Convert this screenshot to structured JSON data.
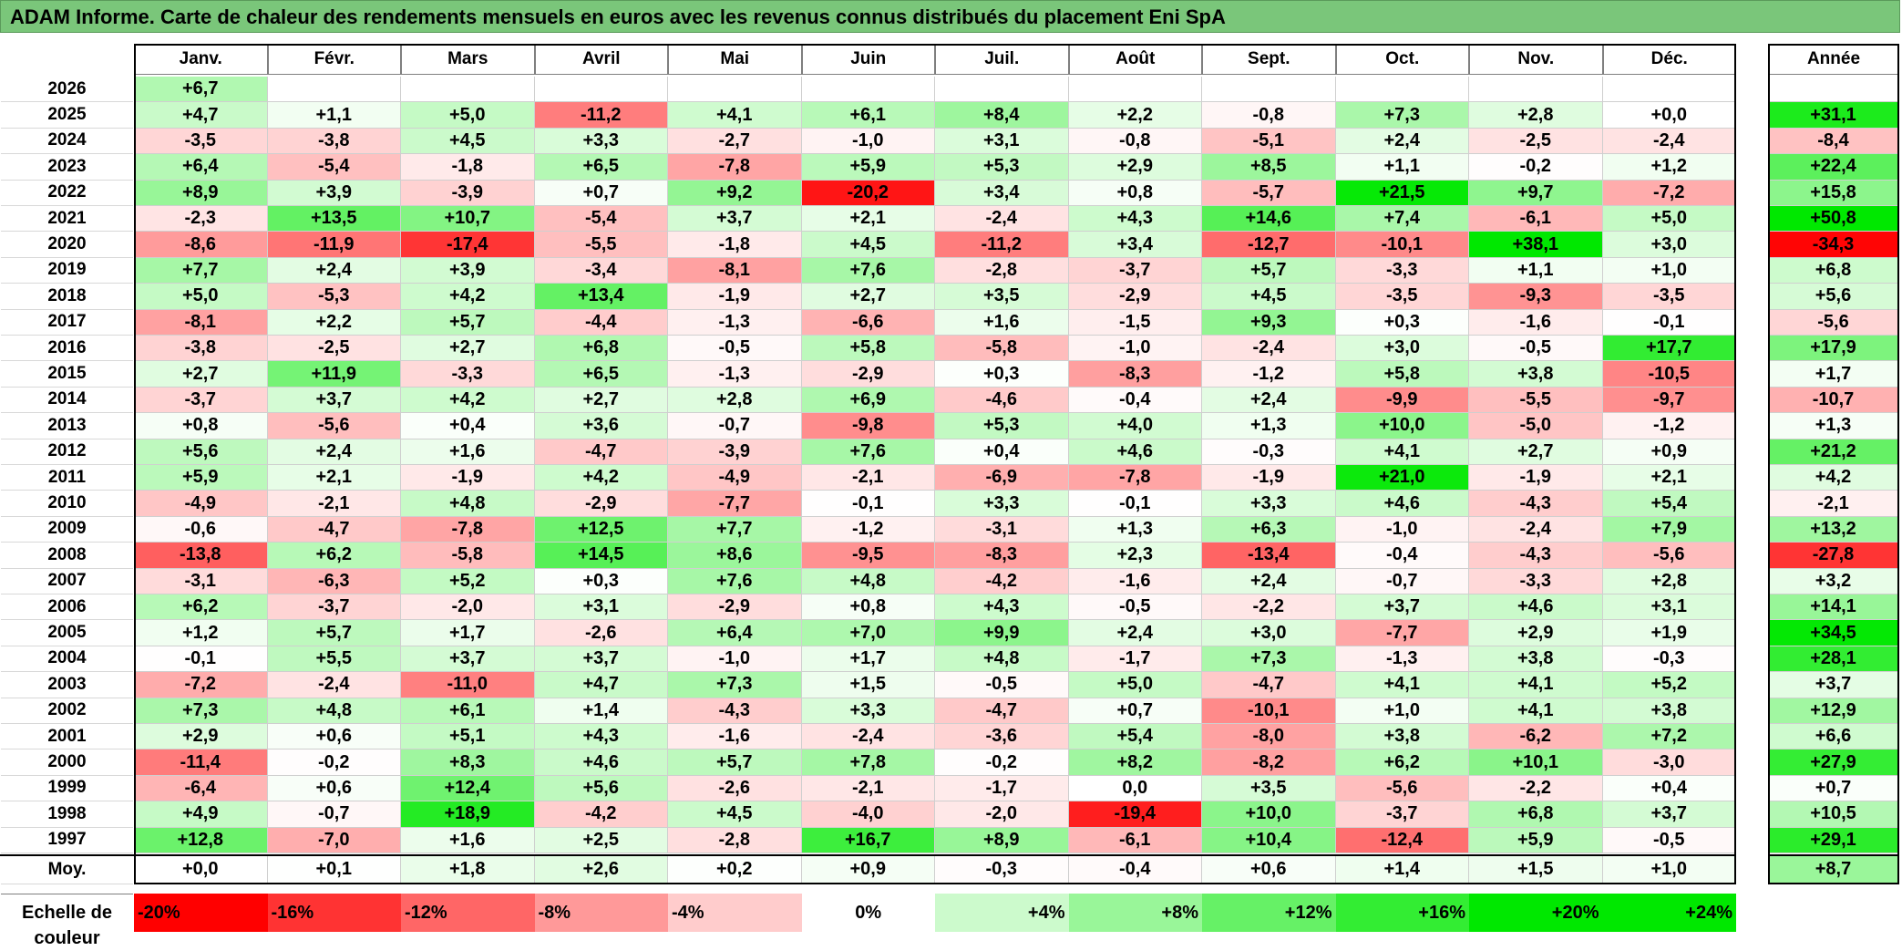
{
  "title": "ADAM Informe. Carte de chaleur des rendements mensuels en euros avec les revenus connus distribués du placement Eni SpA",
  "colors": {
    "title_bg": "#7ac67a",
    "positive": "#00e600",
    "negative": "#ff0000"
  },
  "chart_data": {
    "type": "heatmap",
    "columns": [
      "Janv.",
      "Févr.",
      "Mars",
      "Avril",
      "Mai",
      "Juin",
      "Juil.",
      "Août",
      "Sept.",
      "Oct.",
      "Nov.",
      "Déc."
    ],
    "year_column": "Année",
    "rows": [
      {
        "year": "2026",
        "values": [
          "+6,7",
          null,
          null,
          null,
          null,
          null,
          null,
          null,
          null,
          null,
          null,
          null
        ],
        "annual": null
      },
      {
        "year": "2025",
        "values": [
          "+4,7",
          "+1,1",
          "+5,0",
          "-11,2",
          "+4,1",
          "+6,1",
          "+8,4",
          "+2,2",
          "-0,8",
          "+7,3",
          "+2,8",
          "+0,0"
        ],
        "annual": "+31,1"
      },
      {
        "year": "2024",
        "values": [
          "-3,5",
          "-3,8",
          "+4,5",
          "+3,3",
          "-2,7",
          "-1,0",
          "+3,1",
          "-0,8",
          "-5,1",
          "+2,4",
          "-2,5",
          "-2,4"
        ],
        "annual": "-8,4"
      },
      {
        "year": "2023",
        "values": [
          "+6,4",
          "-5,4",
          "-1,8",
          "+6,5",
          "-7,8",
          "+5,9",
          "+5,3",
          "+2,9",
          "+8,5",
          "+1,1",
          "-0,2",
          "+1,2"
        ],
        "annual": "+22,4"
      },
      {
        "year": "2022",
        "values": [
          "+8,9",
          "+3,9",
          "-3,9",
          "+0,7",
          "+9,2",
          "-20,2",
          "+3,4",
          "+0,8",
          "-5,7",
          "+21,5",
          "+9,7",
          "-7,2"
        ],
        "annual": "+15,8"
      },
      {
        "year": "2021",
        "values": [
          "-2,3",
          "+13,5",
          "+10,7",
          "-5,4",
          "+3,7",
          "+2,1",
          "-2,4",
          "+4,3",
          "+14,6",
          "+7,4",
          "-6,1",
          "+5,0"
        ],
        "annual": "+50,8"
      },
      {
        "year": "2020",
        "values": [
          "-8,6",
          "-11,9",
          "-17,4",
          "-5,5",
          "-1,8",
          "+4,5",
          "-11,2",
          "+3,4",
          "-12,7",
          "-10,1",
          "+38,1",
          "+3,0"
        ],
        "annual": "-34,3"
      },
      {
        "year": "2019",
        "values": [
          "+7,7",
          "+2,4",
          "+3,9",
          "-3,4",
          "-8,1",
          "+7,6",
          "-2,8",
          "-3,7",
          "+5,7",
          "-3,3",
          "+1,1",
          "+1,0"
        ],
        "annual": "+6,8"
      },
      {
        "year": "2018",
        "values": [
          "+5,0",
          "-5,3",
          "+4,2",
          "+13,4",
          "-1,9",
          "+2,7",
          "+3,5",
          "-2,9",
          "+4,5",
          "-3,5",
          "-9,3",
          "-3,5"
        ],
        "annual": "+5,6"
      },
      {
        "year": "2017",
        "values": [
          "-8,1",
          "+2,2",
          "+5,7",
          "-4,4",
          "-1,3",
          "-6,6",
          "+1,6",
          "-1,5",
          "+9,3",
          "+0,3",
          "-1,6",
          "-0,1"
        ],
        "annual": "-5,6"
      },
      {
        "year": "2016",
        "values": [
          "-3,8",
          "-2,5",
          "+2,7",
          "+6,8",
          "-0,5",
          "+5,8",
          "-5,8",
          "-1,0",
          "-2,4",
          "+3,0",
          "-0,5",
          "+17,7"
        ],
        "annual": "+17,9"
      },
      {
        "year": "2015",
        "values": [
          "+2,7",
          "+11,9",
          "-3,3",
          "+6,5",
          "-1,3",
          "-2,9",
          "+0,3",
          "-8,3",
          "-1,2",
          "+5,8",
          "+3,8",
          "-10,5"
        ],
        "annual": "+1,7"
      },
      {
        "year": "2014",
        "values": [
          "-3,7",
          "+3,7",
          "+4,2",
          "+2,7",
          "+2,8",
          "+6,9",
          "-4,6",
          "-0,4",
          "+2,4",
          "-9,9",
          "-5,5",
          "-9,7"
        ],
        "annual": "-10,7"
      },
      {
        "year": "2013",
        "values": [
          "+0,8",
          "-5,6",
          "+0,4",
          "+3,6",
          "-0,7",
          "-9,8",
          "+5,3",
          "+4,0",
          "+1,3",
          "+10,0",
          "-5,0",
          "-1,2"
        ],
        "annual": "+1,3"
      },
      {
        "year": "2012",
        "values": [
          "+5,6",
          "+2,4",
          "+1,6",
          "-4,7",
          "-3,9",
          "+7,6",
          "+0,4",
          "+4,6",
          "-0,3",
          "+4,1",
          "+2,7",
          "+0,9"
        ],
        "annual": "+21,2"
      },
      {
        "year": "2011",
        "values": [
          "+5,9",
          "+2,1",
          "-1,9",
          "+4,2",
          "-4,9",
          "-2,1",
          "-6,9",
          "-7,8",
          "-1,9",
          "+21,0",
          "-1,9",
          "+2,1"
        ],
        "annual": "+4,2"
      },
      {
        "year": "2010",
        "values": [
          "-4,9",
          "-2,1",
          "+4,8",
          "-2,9",
          "-7,7",
          "-0,1",
          "+3,3",
          "-0,1",
          "+3,3",
          "+4,6",
          "-4,3",
          "+5,4"
        ],
        "annual": "-2,1"
      },
      {
        "year": "2009",
        "values": [
          "-0,6",
          "-4,7",
          "-7,8",
          "+12,5",
          "+7,7",
          "-1,2",
          "-3,1",
          "+1,3",
          "+6,3",
          "-1,0",
          "-2,4",
          "+7,9"
        ],
        "annual": "+13,2"
      },
      {
        "year": "2008",
        "values": [
          "-13,8",
          "+6,2",
          "-5,8",
          "+14,5",
          "+8,6",
          "-9,5",
          "-8,3",
          "+2,3",
          "-13,4",
          "-0,4",
          "-4,3",
          "-5,6"
        ],
        "annual": "-27,8"
      },
      {
        "year": "2007",
        "values": [
          "-3,1",
          "-6,3",
          "+5,2",
          "+0,3",
          "+7,6",
          "+4,8",
          "-4,2",
          "-1,6",
          "+2,4",
          "-0,7",
          "-3,3",
          "+2,8"
        ],
        "annual": "+3,2"
      },
      {
        "year": "2006",
        "values": [
          "+6,2",
          "-3,7",
          "-2,0",
          "+3,1",
          "-2,9",
          "+0,8",
          "+4,3",
          "-0,5",
          "-2,2",
          "+3,7",
          "+4,6",
          "+3,1"
        ],
        "annual": "+14,1"
      },
      {
        "year": "2005",
        "values": [
          "+1,2",
          "+5,7",
          "+1,7",
          "-2,6",
          "+6,4",
          "+7,0",
          "+9,9",
          "+2,4",
          "+3,0",
          "-7,7",
          "+2,9",
          "+1,9"
        ],
        "annual": "+34,5"
      },
      {
        "year": "2004",
        "values": [
          "-0,1",
          "+5,5",
          "+3,7",
          "+3,7",
          "-1,0",
          "+1,7",
          "+4,8",
          "-1,7",
          "+7,3",
          "-1,3",
          "+3,8",
          "-0,3"
        ],
        "annual": "+28,1"
      },
      {
        "year": "2003",
        "values": [
          "-7,2",
          "-2,4",
          "-11,0",
          "+4,7",
          "+7,3",
          "+1,5",
          "-0,5",
          "+5,0",
          "-4,7",
          "+4,1",
          "+4,1",
          "+5,2"
        ],
        "annual": "+3,7"
      },
      {
        "year": "2002",
        "values": [
          "+7,3",
          "+4,8",
          "+6,1",
          "+1,4",
          "-4,3",
          "+3,3",
          "-4,7",
          "+0,7",
          "-10,1",
          "+1,0",
          "+4,1",
          "+3,8"
        ],
        "annual": "+12,9"
      },
      {
        "year": "2001",
        "values": [
          "+2,9",
          "+0,6",
          "+5,1",
          "+4,3",
          "-1,6",
          "-2,4",
          "-3,6",
          "+5,4",
          "-8,0",
          "+3,8",
          "-6,2",
          "+7,2"
        ],
        "annual": "+6,6"
      },
      {
        "year": "2000",
        "values": [
          "-11,4",
          "-0,2",
          "+8,3",
          "+4,6",
          "+5,7",
          "+7,8",
          "-0,2",
          "+8,2",
          "-8,2",
          "+6,2",
          "+10,1",
          "-3,0"
        ],
        "annual": "+27,9"
      },
      {
        "year": "1999",
        "values": [
          "-6,4",
          "+0,6",
          "+12,4",
          "+5,6",
          "-2,6",
          "-2,1",
          "-1,7",
          "0,0",
          "+3,5",
          "-5,6",
          "-2,2",
          "+0,4"
        ],
        "annual": "+0,7"
      },
      {
        "year": "1998",
        "values": [
          "+4,9",
          "-0,7",
          "+18,9",
          "-4,2",
          "+4,5",
          "-4,0",
          "-2,0",
          "-19,4",
          "+10,0",
          "-3,7",
          "+6,8",
          "+3,7"
        ],
        "annual": "+10,5"
      },
      {
        "year": "1997",
        "values": [
          "+12,8",
          "-7,0",
          "+1,6",
          "+2,5",
          "-2,8",
          "+16,7",
          "+8,9",
          "-6,1",
          "+10,4",
          "-12,4",
          "+5,9",
          "-0,5"
        ],
        "annual": "+29,1"
      }
    ],
    "average": {
      "label": "Moy.",
      "values": [
        "+0,0",
        "+0,1",
        "+1,8",
        "+2,6",
        "+0,2",
        "+0,9",
        "-0,3",
        "-0,4",
        "+0,6",
        "+1,4",
        "+1,5",
        "+1,0"
      ],
      "annual": "+8,7"
    },
    "color_scale": {
      "label": "Echelle de couleur",
      "stops": [
        {
          "label": "-20%",
          "value": -20
        },
        {
          "label": "-16%",
          "value": -16
        },
        {
          "label": "-12%",
          "value": -12
        },
        {
          "label": "-8%",
          "value": -8
        },
        {
          "label": "-4%",
          "value": -4
        },
        {
          "label": "0%",
          "value": 0
        },
        {
          "label": "+4%",
          "value": 4
        },
        {
          "label": "+8%",
          "value": 8
        },
        {
          "label": "+12%",
          "value": 12
        },
        {
          "label": "+16%",
          "value": 16
        },
        {
          "label": "+20%",
          "value": 20
        },
        {
          "label": "+24%",
          "value": 24
        }
      ]
    }
  }
}
